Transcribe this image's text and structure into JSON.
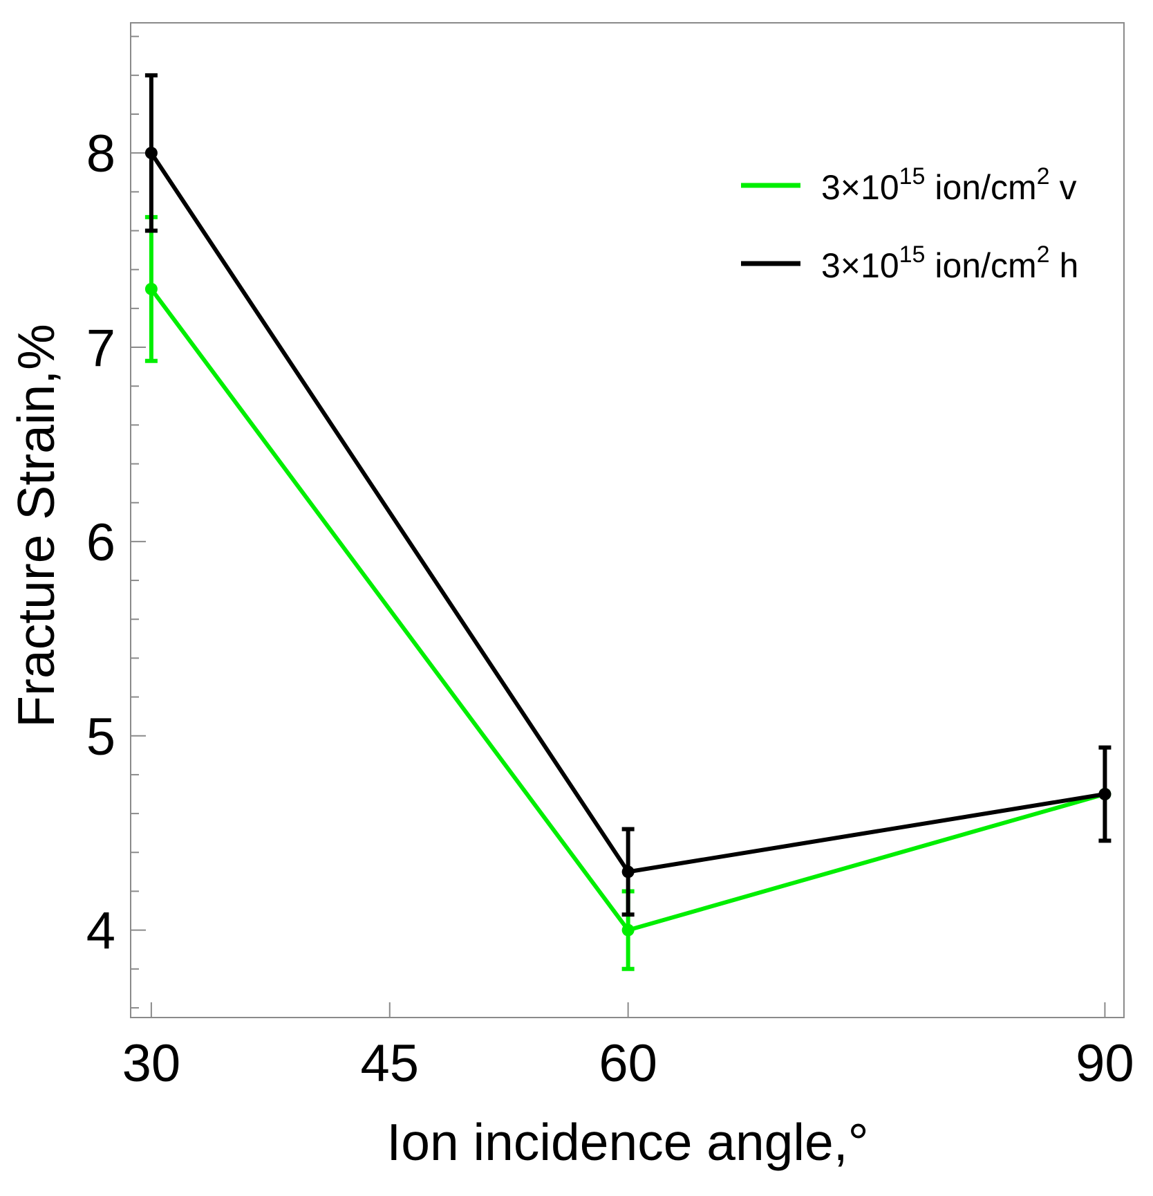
{
  "chart_data": {
    "type": "line",
    "title": "",
    "xlabel": "Ion incidence angle,°",
    "ylabel": "Fracture Strain,%",
    "xlim": [
      28.7,
      91.2
    ],
    "ylim": [
      3.55,
      8.67
    ],
    "xticks": [
      30,
      45,
      60,
      90
    ],
    "xtick_labels": [
      "30",
      "45",
      "60",
      "90"
    ],
    "yticks": [
      4,
      5,
      6,
      7,
      8
    ],
    "ytick_labels": [
      "4",
      "5",
      "6",
      "7",
      "8"
    ],
    "y_minor_step": 0.2,
    "grid": false,
    "legend_position": "top-right",
    "series": [
      {
        "name": "3×10^15 ion/cm^2 v",
        "legend": {
          "prefix": "3×10",
          "exp1": "15",
          "mid": " ion/cm",
          "exp2": "2",
          "suffix": " v"
        },
        "color": "#00ee00",
        "x": [
          30,
          60,
          90
        ],
        "y": [
          7.3,
          4.0,
          4.7
        ],
        "err": [
          0.37,
          0.2,
          0.0
        ]
      },
      {
        "name": "3×10^15 ion/cm^2 h",
        "legend": {
          "prefix": "3×10",
          "exp1": "15",
          "mid": " ion/cm",
          "exp2": "2",
          "suffix": " h"
        },
        "color": "#000000",
        "x": [
          30,
          60,
          90
        ],
        "y": [
          8.0,
          4.3,
          4.7
        ],
        "err": [
          0.4,
          0.22,
          0.24
        ]
      }
    ]
  }
}
